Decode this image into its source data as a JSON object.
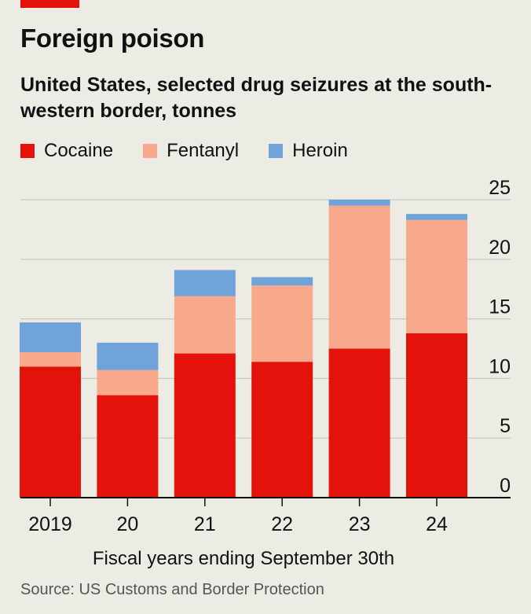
{
  "header": {
    "title": "Foreign poison",
    "subtitle": "United States, selected drug seizures at the south-western border, tonnes"
  },
  "source": "Source: US Customs and Border Protection",
  "chart_data": {
    "type": "bar",
    "stacked": true,
    "categories": [
      "2019",
      "20",
      "21",
      "22",
      "23",
      "24"
    ],
    "series": [
      {
        "name": "Cocaine",
        "color": "#e3120b",
        "values": [
          11.0,
          8.6,
          12.1,
          11.4,
          12.5,
          13.8
        ]
      },
      {
        "name": "Fentanyl",
        "color": "#f9a98b",
        "values": [
          1.2,
          2.1,
          4.8,
          6.4,
          12.0,
          9.5
        ]
      },
      {
        "name": "Heroin",
        "color": "#6fa3d9",
        "values": [
          2.5,
          2.3,
          2.2,
          0.7,
          0.5,
          0.5
        ]
      }
    ],
    "xlabel": "Fiscal years ending September 30th",
    "ylabel": "",
    "ylim": [
      0,
      25
    ],
    "yticks": [
      "0",
      "5",
      "10",
      "15",
      "20",
      "25"
    ],
    "grid": true,
    "y_axis_position": "right",
    "legend_position": "top-left"
  }
}
